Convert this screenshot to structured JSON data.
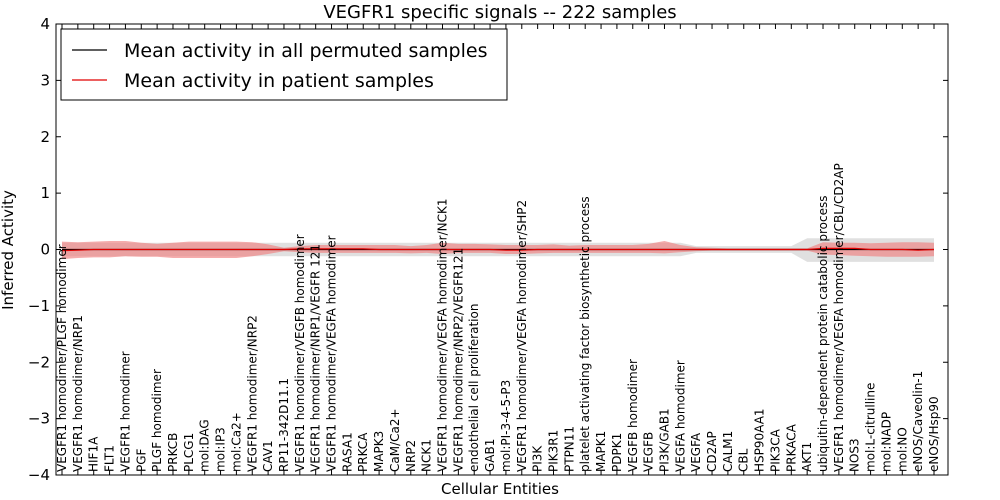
{
  "chart_data": {
    "type": "line",
    "title": "VEGFR1 specific signals -- 222 samples",
    "xlabel": "Cellular Entities",
    "ylabel": "Inferred Activity",
    "ylim": [
      -4,
      4
    ],
    "yticks": [
      "−4",
      "−3",
      "−2",
      "−1",
      "0",
      "1",
      "2",
      "3",
      "4"
    ],
    "ytick_values": [
      -4,
      -3,
      -2,
      -1,
      0,
      1,
      2,
      3,
      4
    ],
    "grid": false,
    "legend_position": "top-left",
    "categories": [
      "VEGFR1 homodimer/PLGF homodimer",
      "VEGFR1 homodimer/NRP1",
      "HIF1A",
      "FLT1",
      "VEGFR1 homodimer",
      "PGF",
      "PLGF homodimer",
      "PRKCB",
      "PLCG1",
      "mol:DAG",
      "mol:IP3",
      "mol:Ca2+",
      "VEGFR1 homodimer/NRP2",
      "CAV1",
      "RP11-342D11.1",
      "VEGFR1 homodimer/VEGFB homodimer",
      "VEGFR1 homodimer/NRP1/VEGFR 121",
      "VEGFR1 homodimer/VEGFA homodimer",
      "RASA1",
      "PRKCA",
      "MAPK3",
      "CaM/Ca2+",
      "NRP2",
      "NCK1",
      "VEGFR1 homodimer/VEGFA homodimer/NCK1",
      "VEGFR1 homodimer/NRP2/VEGFR121",
      "endothelial cell proliferation",
      "GAB1",
      "mol:PI-3-4-5-P3",
      "VEGFR1 homodimer/VEGFA homodimer/SHP2",
      "PI3K",
      "PIK3R1",
      "PTPN11",
      "platelet activating factor biosynthetic process",
      "MAPK1",
      "PDPK1",
      "VEGFB homodimer",
      "VEGFB",
      "PI3K/GAB1",
      "VEGFA homodimer",
      "VEGFA",
      "CD2AP",
      "CALM1",
      "CBL",
      "HSP90AA1",
      "PIK3CA",
      "PRKACA",
      "AKT1",
      "ubiquitin-dependent protein catabolic process",
      "VEGFR1 homodimer/VEGFA homodimer/CBL/CD2AP",
      "NOS3",
      "mol:L-citrulline",
      "mol:NADP",
      "mol:NO",
      "eNOS/Caveolin-1",
      "eNOS/Hsp90"
    ],
    "series": [
      {
        "name": "Mean activity in all permuted samples",
        "color": "#000000",
        "band_color": "#bbbbbb",
        "values": [
          0,
          0,
          0,
          0,
          0,
          0,
          0,
          0,
          0,
          0,
          0,
          0,
          0,
          0,
          0,
          0,
          0,
          0,
          0,
          0,
          0,
          0,
          0,
          0,
          0,
          0,
          0,
          0,
          0,
          0,
          0,
          0,
          0,
          0,
          0,
          0,
          0,
          0,
          0,
          0,
          0,
          0,
          0,
          0,
          0,
          0,
          0,
          0,
          0,
          0,
          0,
          0,
          0,
          0,
          0,
          0
        ],
        "lower": [
          -0.12,
          -0.12,
          -0.12,
          -0.12,
          -0.12,
          -0.12,
          -0.12,
          -0.12,
          -0.12,
          -0.12,
          -0.12,
          -0.12,
          -0.12,
          -0.12,
          -0.12,
          -0.12,
          -0.12,
          -0.12,
          -0.12,
          -0.12,
          -0.12,
          -0.12,
          -0.12,
          -0.12,
          -0.12,
          -0.12,
          -0.12,
          -0.12,
          -0.12,
          -0.12,
          -0.12,
          -0.12,
          -0.12,
          -0.12,
          -0.12,
          -0.12,
          -0.12,
          -0.12,
          -0.12,
          -0.12,
          -0.06,
          -0.06,
          -0.06,
          -0.06,
          -0.06,
          -0.06,
          -0.06,
          -0.22,
          -0.22,
          -0.22,
          -0.22,
          -0.22,
          -0.22,
          -0.22,
          -0.22,
          -0.22
        ],
        "upper": [
          0.12,
          0.12,
          0.12,
          0.12,
          0.12,
          0.12,
          0.12,
          0.12,
          0.12,
          0.12,
          0.12,
          0.12,
          0.12,
          0.12,
          0.12,
          0.12,
          0.12,
          0.12,
          0.12,
          0.12,
          0.12,
          0.12,
          0.12,
          0.12,
          0.12,
          0.12,
          0.12,
          0.12,
          0.12,
          0.12,
          0.12,
          0.12,
          0.12,
          0.12,
          0.12,
          0.12,
          0.12,
          0.12,
          0.12,
          0.12,
          0.06,
          0.06,
          0.06,
          0.06,
          0.06,
          0.06,
          0.06,
          0.2,
          0.2,
          0.2,
          0.2,
          0.2,
          0.2,
          0.2,
          0.2,
          0.2
        ]
      },
      {
        "name": "Mean activity in patient samples",
        "color": "#e00000",
        "band_color": "#f08080",
        "values": [
          -0.02,
          -0.01,
          0,
          0,
          0,
          0,
          0,
          0,
          0,
          0,
          0,
          0,
          0,
          0,
          0,
          0.01,
          0.01,
          0.01,
          0.01,
          0.01,
          0,
          0,
          0,
          0,
          0,
          0,
          0,
          0,
          -0.01,
          -0.01,
          0,
          0,
          0,
          0,
          0,
          0,
          0,
          0,
          0,
          0,
          0,
          0,
          0,
          0,
          0,
          0,
          0,
          0,
          0.02,
          0.02,
          0.02,
          0,
          0,
          0,
          -0.01,
          0
        ],
        "lower": [
          -0.17,
          -0.15,
          -0.14,
          -0.14,
          -0.12,
          -0.13,
          -0.13,
          -0.15,
          -0.15,
          -0.15,
          -0.15,
          -0.15,
          -0.12,
          -0.08,
          -0.03,
          -0.05,
          -0.06,
          -0.06,
          -0.06,
          -0.06,
          -0.06,
          -0.06,
          -0.07,
          -0.06,
          -0.08,
          -0.06,
          -0.06,
          -0.06,
          -0.08,
          -0.08,
          -0.07,
          -0.06,
          -0.06,
          -0.06,
          -0.06,
          -0.06,
          -0.06,
          -0.06,
          -0.07,
          -0.05,
          -0.03,
          -0.02,
          -0.02,
          -0.02,
          -0.02,
          -0.02,
          -0.02,
          -0.02,
          -0.09,
          -0.1,
          -0.11,
          -0.12,
          -0.13,
          -0.13,
          -0.13,
          -0.12
        ],
        "upper": [
          0.14,
          0.13,
          0.14,
          0.15,
          0.15,
          0.12,
          0.1,
          0.12,
          0.14,
          0.14,
          0.14,
          0.14,
          0.13,
          0.09,
          0.03,
          0.06,
          0.08,
          0.08,
          0.08,
          0.08,
          0.08,
          0.08,
          0.06,
          0.08,
          0.12,
          0.1,
          0.1,
          0.09,
          0.08,
          0.08,
          0.08,
          0.09,
          0.07,
          0.08,
          0.08,
          0.08,
          0.08,
          0.1,
          0.15,
          0.08,
          0.04,
          0.03,
          0.02,
          0.02,
          0.02,
          0.02,
          0.02,
          0.02,
          0.13,
          0.12,
          0.12,
          0.11,
          0.12,
          0.13,
          0.13,
          0.12
        ]
      }
    ]
  }
}
